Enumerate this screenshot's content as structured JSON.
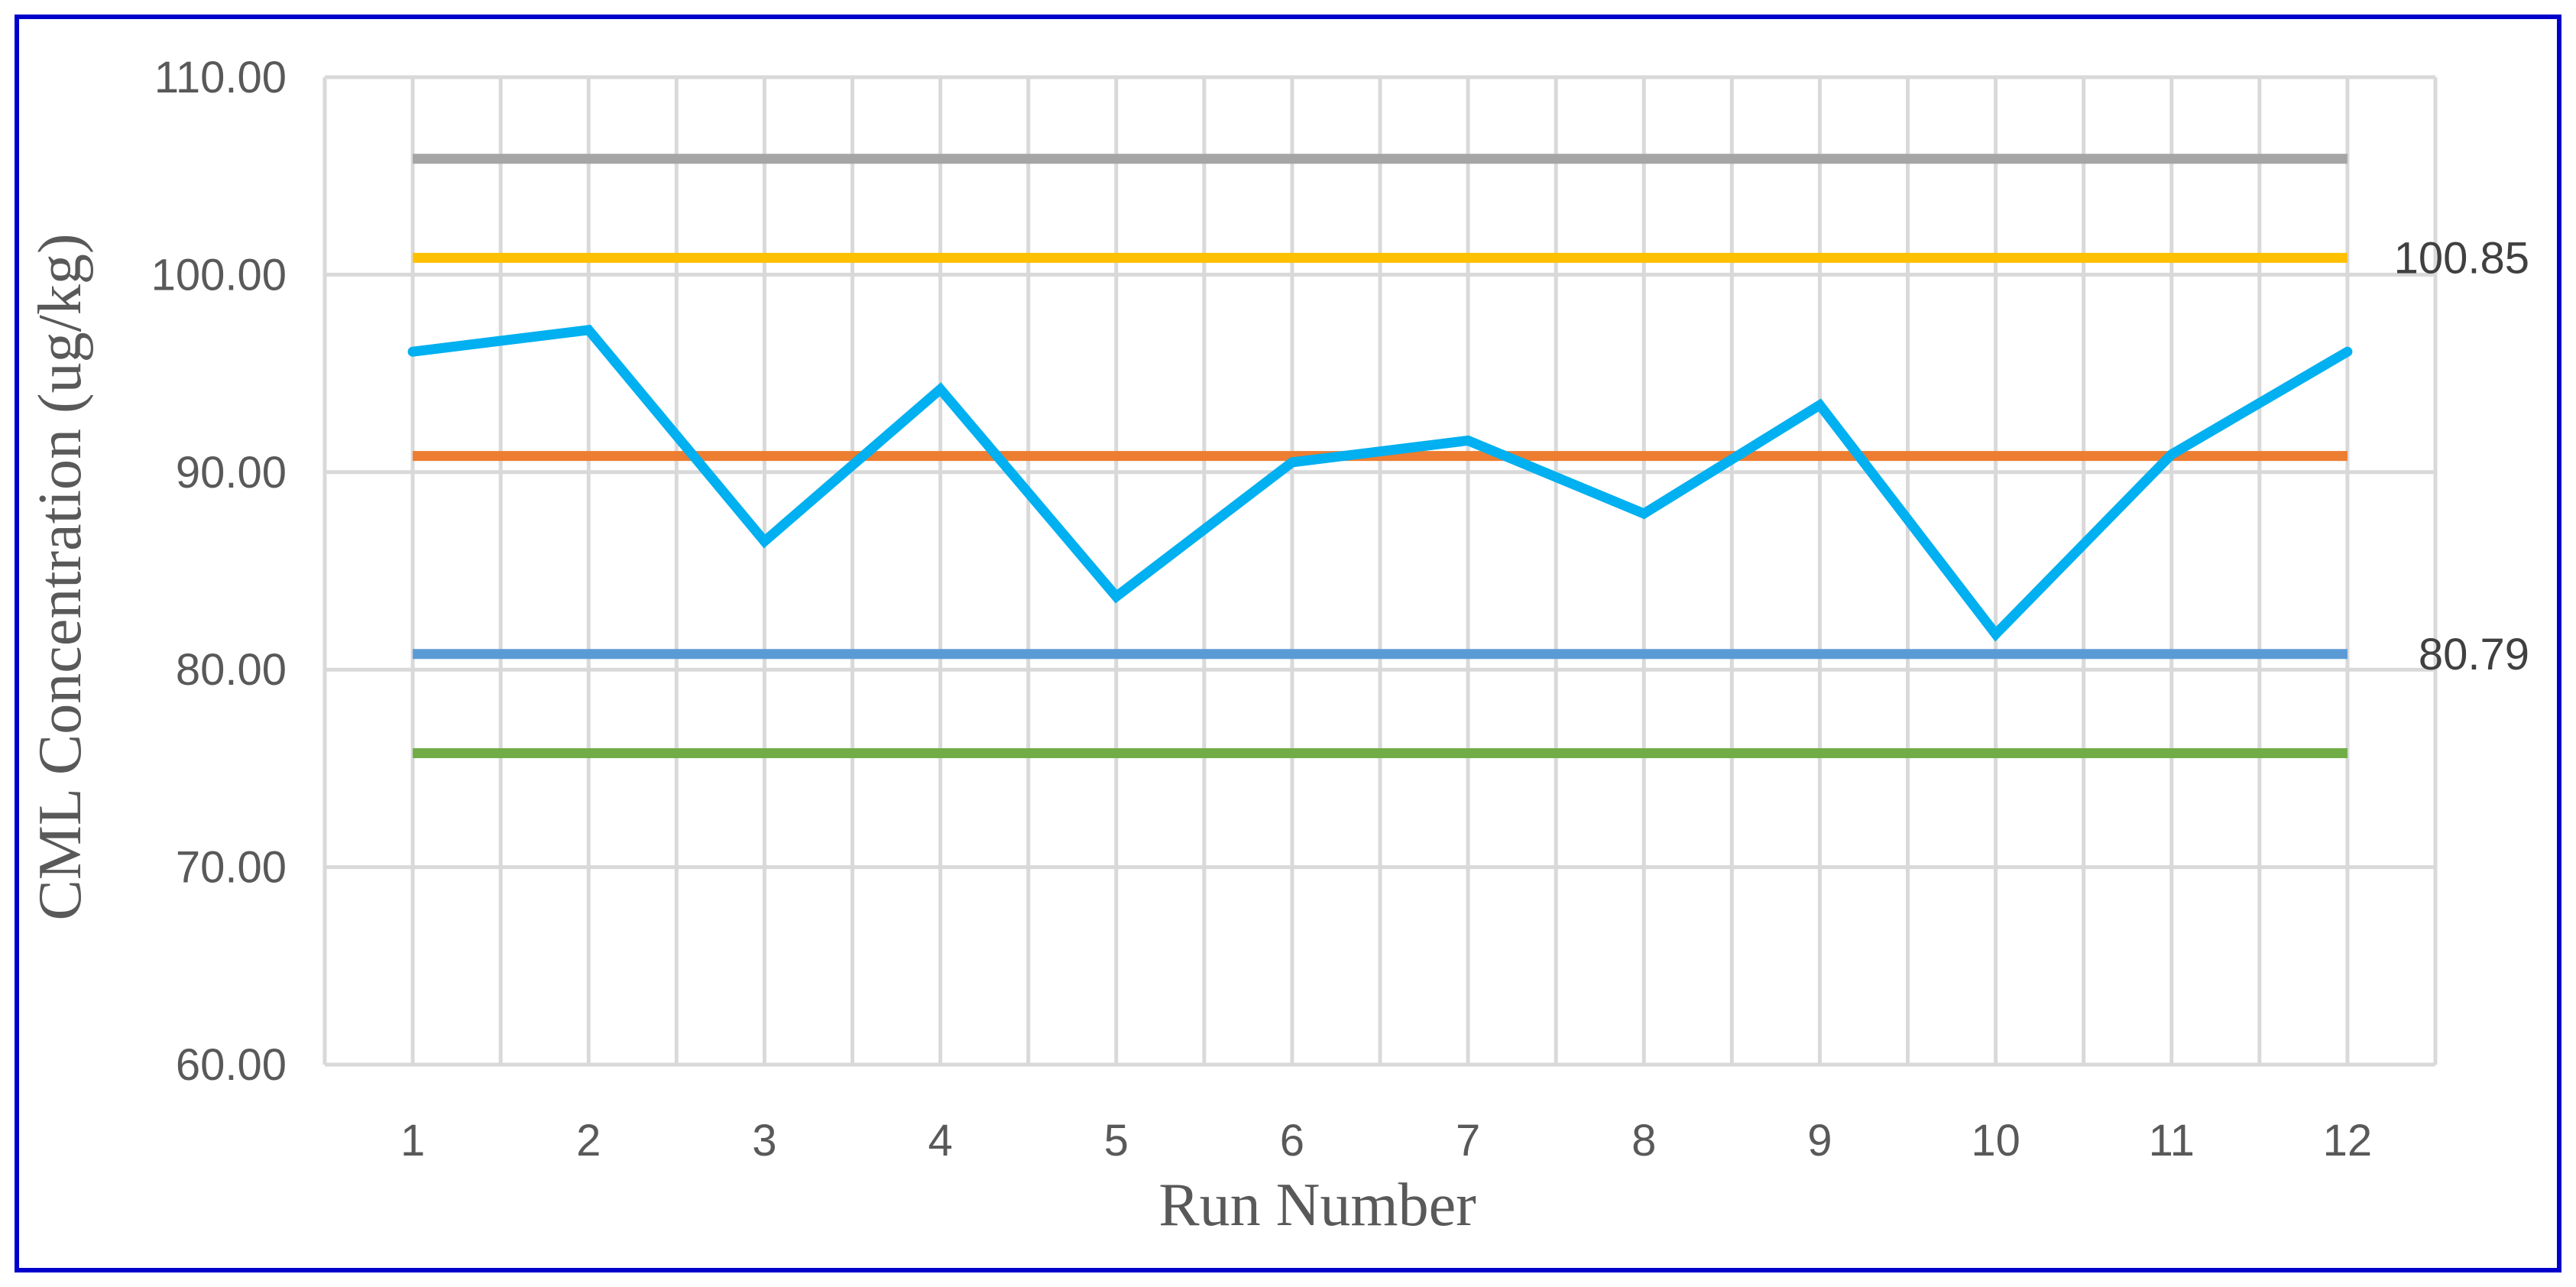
{
  "chart_data": {
    "type": "line",
    "xlabel": "Run Number",
    "ylabel": "CML Concentration (ug/kg)",
    "x": [
      "1",
      "2",
      "3",
      "4",
      "5",
      "6",
      "7",
      "8",
      "9",
      "10",
      "11",
      "12"
    ],
    "ylim": [
      60,
      110
    ],
    "yticks": [
      "60.00",
      "70.00",
      "80.00",
      "90.00",
      "100.00",
      "110.00"
    ],
    "grid": true,
    "legend": "none",
    "series": [
      {
        "color": "#00B0F0",
        "values": [
          96.1,
          97.2,
          86.5,
          94.2,
          83.7,
          90.5,
          91.6,
          87.9,
          93.4,
          81.8,
          90.9,
          96.1
        ]
      }
    ],
    "reference_lines": [
      {
        "value": 105.87,
        "color": "#A5A5A5",
        "label": ""
      },
      {
        "value": 100.85,
        "color": "#FFC000",
        "label": "100.85"
      },
      {
        "value": 90.82,
        "color": "#ED7D31",
        "label": ""
      },
      {
        "value": 80.79,
        "color": "#5B9BD5",
        "label": "80.79"
      },
      {
        "value": 75.77,
        "color": "#70AD47",
        "label": ""
      }
    ]
  },
  "frame_color": "#0000CC",
  "grid_color": "#D9D9D9"
}
